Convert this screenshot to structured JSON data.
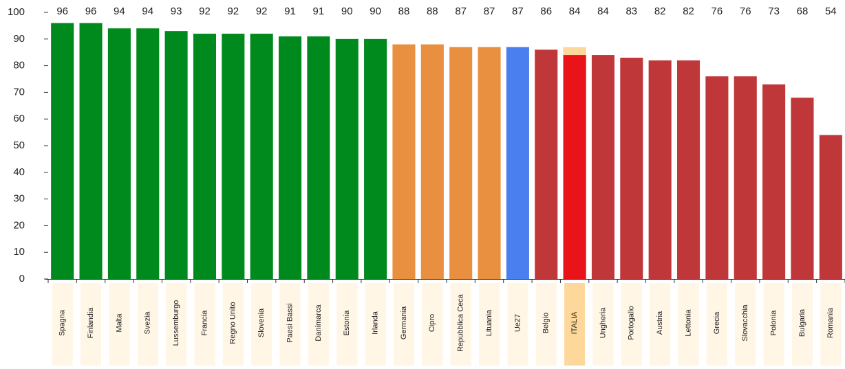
{
  "chart_data": {
    "type": "bar",
    "categories": [
      "Spagna",
      "Finlandia",
      "Malta",
      "Svezia",
      "Lussemburgo",
      "Francia",
      "Regno Unito",
      "Slovenia",
      "Paesi Bassi",
      "Danimarca",
      "Estonia",
      "Irlanda",
      "Germania",
      "Cipro",
      "Repubblica Ceca",
      "Lituania",
      "Ue27",
      "Belgio",
      "ITALIA",
      "Ungheria",
      "Portogallo",
      "Austria",
      "Lettonia",
      "Grecia",
      "Slovacchia",
      "Polonia",
      "Bulgaria",
      "Romania"
    ],
    "values": [
      96,
      96,
      94,
      94,
      93,
      92,
      92,
      92,
      91,
      91,
      90,
      90,
      88,
      88,
      87,
      87,
      87,
      86,
      84,
      84,
      83,
      82,
      82,
      76,
      76,
      73,
      68,
      54
    ],
    "colors": [
      "#008a1e",
      "#008a1e",
      "#008a1e",
      "#008a1e",
      "#008a1e",
      "#008a1e",
      "#008a1e",
      "#008a1e",
      "#008a1e",
      "#008a1e",
      "#008a1e",
      "#008a1e",
      "#e8903f",
      "#e8903f",
      "#e8903f",
      "#e8903f",
      "#4a7ff0",
      "#c0373a",
      "#e8141a",
      "#c0373a",
      "#c0373a",
      "#c0373a",
      "#c0373a",
      "#c0373a",
      "#c0373a",
      "#c0373a",
      "#c0373a",
      "#c0373a"
    ],
    "highlight": [
      null,
      null,
      null,
      null,
      null,
      null,
      null,
      null,
      null,
      null,
      null,
      null,
      null,
      null,
      null,
      null,
      null,
      null,
      87,
      null,
      null,
      null,
      null,
      null,
      null,
      null,
      null,
      null
    ],
    "highlight_color": "#fed89a",
    "label_box_color": "#fff6e6",
    "ylim": [
      0,
      100
    ],
    "yticks": [
      0,
      10,
      20,
      30,
      40,
      50,
      60,
      70,
      80,
      90,
      100
    ]
  }
}
